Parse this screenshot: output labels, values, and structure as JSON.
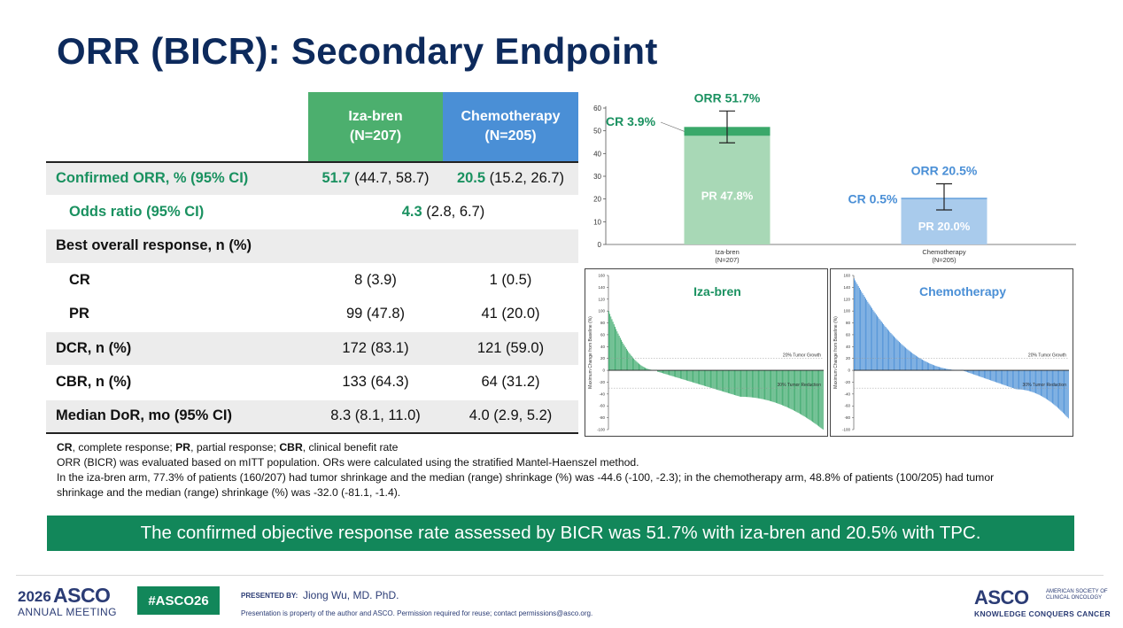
{
  "title": "ORR (BICR): Secondary Endpoint",
  "table": {
    "col_iza_name": "Iza-bren",
    "col_iza_n": "(N=207)",
    "col_chemo_name": "Chemotherapy",
    "col_chemo_n": "(N=205)",
    "rows": [
      {
        "label": "Confirmed ORR, % (95% CI)",
        "iza_main": "51.7",
        "iza_ci": " (44.7, 58.7)",
        "chemo_main": "20.5",
        "chemo_ci": " (15.2, 26.7)"
      },
      {
        "label": "Odds ratio (95% CI)",
        "main": "4.3",
        "ci": " (2.8, 6.7)"
      },
      {
        "label": "Best overall response, n (%)"
      },
      {
        "label": "CR",
        "iza": "8 (3.9)",
        "chemo": "1 (0.5)"
      },
      {
        "label": "PR",
        "iza": "99 (47.8)",
        "chemo": "41 (20.0)"
      },
      {
        "label": "DCR, n (%)",
        "iza": "172 (83.1)",
        "chemo": "121 (59.0)"
      },
      {
        "label": "CBR, n (%)",
        "iza": "133 (64.3)",
        "chemo": "64 (31.2)"
      },
      {
        "label": "Median DoR, mo (95% CI)",
        "iza": "8.3 (8.1, 11.0)",
        "chemo": "4.0 (2.9, 5.2)"
      }
    ]
  },
  "notes": {
    "abbr_cr": "CR",
    "abbr_cr_text": ", complete response; ",
    "abbr_pr": "PR",
    "abbr_pr_text": ", partial response; ",
    "abbr_cbr": "CBR",
    "abbr_cbr_text": ", clinical benefit rate",
    "line2": "ORR (BICR) was evaluated based on mITT population. ORs were calculated using the stratified Mantel-Haenszel method.",
    "line3": "In the iza-bren arm, 77.3% of patients (160/207) had tumor shrinkage and the median (range) shrinkage (%) was -44.6 (-100, -2.3); in the chemotherapy arm, 48.8% of patients (100/205) had tumor shrinkage and the median (range) shrinkage (%) was -32.0 (-81.1, -1.4)."
  },
  "banner": "The confirmed objective response rate assessed by BICR was 51.7% with iza-bren and 20.5% with TPC.",
  "footer": {
    "year": "2026",
    "asco": "ASCO",
    "annual_meeting": "ANNUAL MEETING",
    "hashtag": "#ASCO26",
    "presented_by": "PRESENTED BY:",
    "presenter": "Jiong Wu, MD. PhD.",
    "permission": "Presentation is property of the author and ASCO. Permission required for reuse; contact permissions@asco.org.",
    "asco_right": "ASCO",
    "asco_society": "AMERICAN SOCIETY OF CLINICAL ONCOLOGY",
    "tagline": "KNOWLEDGE CONQUERS CANCER"
  },
  "colors": {
    "iza_dark": "#3aa86a",
    "iza_light": "#a8d8b6",
    "chemo_dark": "#4a8fd6",
    "chemo_light": "#a9cbec",
    "green_text": "#1a9160",
    "blue_text": "#4a8fd6"
  },
  "chart_data": [
    {
      "type": "bar",
      "stacked": true,
      "categories": [
        "Iza-bren\n(N=207)",
        "Chemotherapy\n(N=205)"
      ],
      "category_lines": [
        [
          "Iza-bren",
          "(N=207)"
        ],
        [
          "Chemotherapy",
          "(N=205)"
        ]
      ],
      "series": [
        {
          "name": "PR",
          "values": [
            47.8,
            20.0
          ]
        },
        {
          "name": "CR",
          "values": [
            3.9,
            0.5
          ]
        }
      ],
      "totals": [
        51.7,
        20.5
      ],
      "ci": [
        [
          44.7,
          58.7
        ],
        [
          15.2,
          26.7
        ]
      ],
      "labels": {
        "pr": [
          "PR 47.8%",
          "PR 20.0%"
        ],
        "cr": [
          "CR 3.9%",
          "CR 0.5%"
        ],
        "orr": [
          "ORR 51.7%",
          "ORR 20.5%"
        ]
      },
      "ylim": [
        0,
        60
      ],
      "yticks": [
        0,
        10,
        20,
        30,
        40,
        50,
        60
      ]
    },
    {
      "type": "bar",
      "subtype": "waterfall",
      "title": "Iza-bren",
      "n": 207,
      "ylabel": "Maximum Change from Baseline (%)",
      "ylim": [
        -100,
        160
      ],
      "yticks": [
        160,
        140,
        120,
        100,
        80,
        60,
        40,
        20,
        0,
        -20,
        -40,
        -60,
        -80,
        -100
      ],
      "ref_lines": [
        {
          "y": 20,
          "label": "20% Tumor Growth"
        },
        {
          "y": -30,
          "label": "30% Tumor Reduction"
        }
      ],
      "max_value": 100,
      "min_value": -100,
      "shrinkage_median": -44.6,
      "shrinkage_range": [
        -100,
        -2.3
      ],
      "shrinkage_count": 160
    },
    {
      "type": "bar",
      "subtype": "waterfall",
      "title": "Chemotherapy",
      "n": 205,
      "ylabel": "Maximum Change from Baseline (%)",
      "ylim": [
        -100,
        160
      ],
      "yticks": [
        160,
        140,
        120,
        100,
        80,
        60,
        40,
        20,
        0,
        -20,
        -40,
        -60,
        -80,
        -100
      ],
      "ref_lines": [
        {
          "y": 20,
          "label": "20% Tumor Growth"
        },
        {
          "y": -30,
          "label": "30% Tumor Reduction"
        }
      ],
      "max_value": 155,
      "min_value": -81.1,
      "shrinkage_median": -32.0,
      "shrinkage_range": [
        -81.1,
        -1.4
      ],
      "shrinkage_count": 100
    }
  ]
}
